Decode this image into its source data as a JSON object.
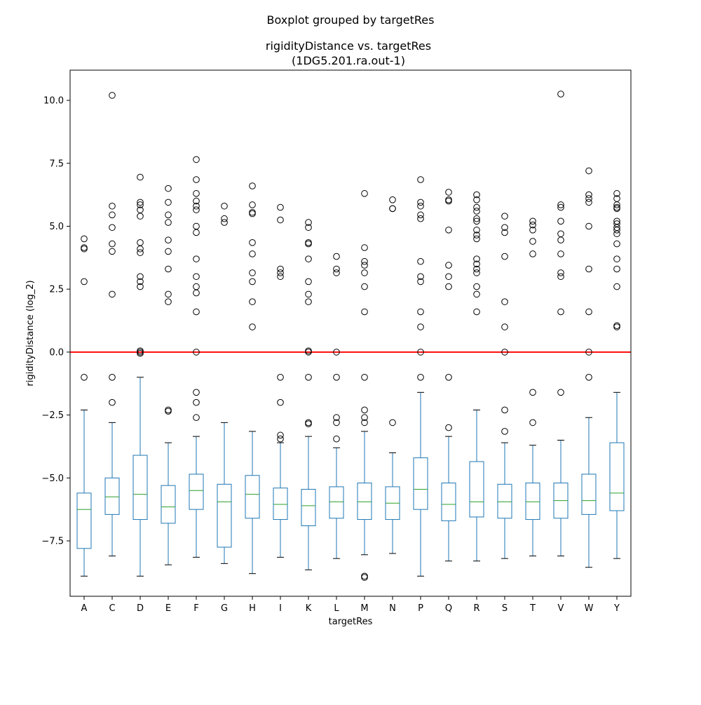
{
  "chart_data": {
    "type": "box",
    "suptitle": "Boxplot grouped by targetRes",
    "title_line1": "rigidityDistance vs. targetRes",
    "title_line2": "(1DG5.201.ra.out-1)",
    "xlabel": "targetRes",
    "ylabel": "rigidityDistance (log_2)",
    "ylim": [
      -9.7,
      11.2
    ],
    "yticks": [
      {
        "value": -7.5,
        "label": "−7.5"
      },
      {
        "value": -5.0,
        "label": "−5.0"
      },
      {
        "value": -2.5,
        "label": "−2.5"
      },
      {
        "value": 0.0,
        "label": "0.0"
      },
      {
        "value": 2.5,
        "label": "2.5"
      },
      {
        "value": 5.0,
        "label": "5.0"
      },
      {
        "value": 7.5,
        "label": "7.5"
      },
      {
        "value": 10.0,
        "label": "10.0"
      }
    ],
    "reference_line": {
      "value": 0.0,
      "color": "#ff0000"
    },
    "box_color": "#1f77b4",
    "median_color": "#2ca02c",
    "grid": false,
    "categories": [
      "A",
      "C",
      "D",
      "E",
      "F",
      "G",
      "H",
      "I",
      "K",
      "L",
      "M",
      "N",
      "P",
      "Q",
      "R",
      "S",
      "T",
      "V",
      "W",
      "Y"
    ],
    "boxes": [
      {
        "whislo": -8.9,
        "q1": -7.8,
        "med": -6.25,
        "q3": -5.6,
        "whishi": -2.3,
        "fliers": [
          4.5,
          4.15,
          4.1,
          2.8,
          -1.0
        ]
      },
      {
        "whislo": -8.1,
        "q1": -6.45,
        "med": -5.75,
        "q3": -5.0,
        "whishi": -2.8,
        "fliers": [
          10.2,
          5.8,
          5.45,
          4.95,
          4.3,
          4.0,
          2.3,
          -1.0,
          -2.0
        ]
      },
      {
        "whislo": -8.9,
        "q1": -6.65,
        "med": -5.65,
        "q3": -4.1,
        "whishi": -1.0,
        "fliers": [
          6.95,
          5.95,
          5.85,
          5.65,
          5.4,
          4.35,
          4.1,
          3.95,
          3.0,
          2.8,
          2.6,
          0.05,
          0.0,
          -0.05
        ]
      },
      {
        "whislo": -8.45,
        "q1": -6.8,
        "med": -6.15,
        "q3": -5.3,
        "whishi": -3.6,
        "fliers": [
          6.5,
          5.95,
          5.45,
          5.15,
          4.45,
          4.0,
          3.3,
          2.3,
          2.0,
          -2.3,
          -2.35
        ]
      },
      {
        "whislo": -8.15,
        "q1": -6.25,
        "med": -5.5,
        "q3": -4.85,
        "whishi": -3.35,
        "fliers": [
          7.65,
          6.85,
          6.3,
          6.0,
          5.8,
          5.65,
          5.0,
          4.75,
          3.7,
          3.0,
          2.6,
          2.35,
          1.6,
          0.0,
          -1.6,
          -2.0,
          -2.6
        ]
      },
      {
        "whislo": -8.4,
        "q1": -7.75,
        "med": -5.95,
        "q3": -5.25,
        "whishi": -2.8,
        "fliers": [
          5.8,
          5.3,
          5.15
        ]
      },
      {
        "whislo": -8.8,
        "q1": -6.6,
        "med": -5.65,
        "q3": -4.9,
        "whishi": -3.15,
        "fliers": [
          6.6,
          5.85,
          5.55,
          5.5,
          4.35,
          3.9,
          3.15,
          2.8,
          2.0,
          1.0
        ]
      },
      {
        "whislo": -8.15,
        "q1": -6.65,
        "med": -6.05,
        "q3": -5.4,
        "whishi": -3.6,
        "fliers": [
          5.75,
          5.25,
          3.3,
          3.15,
          3.0,
          -1.0,
          -2.0,
          -3.3,
          -3.45
        ]
      },
      {
        "whislo": -8.65,
        "q1": -6.9,
        "med": -6.1,
        "q3": -5.45,
        "whishi": -3.35,
        "fliers": [
          5.15,
          4.95,
          4.35,
          4.3,
          3.7,
          2.8,
          2.3,
          2.0,
          0.05,
          0.0,
          -1.0,
          -2.8,
          -2.85
        ]
      },
      {
        "whislo": -8.2,
        "q1": -6.6,
        "med": -5.95,
        "q3": -5.35,
        "whishi": -3.8,
        "fliers": [
          3.8,
          3.3,
          3.15,
          0.0,
          -1.0,
          -2.6,
          -2.8,
          -3.45
        ]
      },
      {
        "whislo": -8.05,
        "q1": -6.65,
        "med": -5.95,
        "q3": -5.2,
        "whishi": -3.15,
        "fliers": [
          6.3,
          4.15,
          3.6,
          3.45,
          3.15,
          2.6,
          1.6,
          -1.0,
          -2.3,
          -2.6,
          -2.8,
          -8.9,
          -8.95
        ]
      },
      {
        "whislo": -8.0,
        "q1": -6.65,
        "med": -6.0,
        "q3": -5.35,
        "whishi": -4.0,
        "fliers": [
          6.05,
          5.7,
          5.7,
          -2.8
        ]
      },
      {
        "whislo": -8.9,
        "q1": -6.25,
        "med": -5.45,
        "q3": -4.2,
        "whishi": -1.6,
        "fliers": [
          6.85,
          5.95,
          5.8,
          5.45,
          5.3,
          3.6,
          3.0,
          2.8,
          1.6,
          1.0,
          0.0,
          -1.0
        ]
      },
      {
        "whislo": -8.3,
        "q1": -6.7,
        "med": -6.05,
        "q3": -5.2,
        "whishi": -3.35,
        "fliers": [
          6.35,
          6.05,
          6.0,
          4.85,
          3.45,
          3.0,
          2.6,
          -1.0,
          -3.0
        ]
      },
      {
        "whislo": -8.3,
        "q1": -6.55,
        "med": -5.95,
        "q3": -4.35,
        "whishi": -2.3,
        "fliers": [
          6.25,
          6.05,
          5.75,
          5.6,
          5.3,
          5.2,
          4.85,
          4.65,
          4.5,
          3.7,
          3.5,
          3.3,
          3.15,
          2.6,
          2.3,
          1.6
        ]
      },
      {
        "whislo": -8.2,
        "q1": -6.6,
        "med": -5.95,
        "q3": -5.25,
        "whishi": -3.6,
        "fliers": [
          5.4,
          4.95,
          4.75,
          3.8,
          2.0,
          1.0,
          0.0,
          -2.3,
          -3.15
        ]
      },
      {
        "whislo": -8.1,
        "q1": -6.65,
        "med": -5.95,
        "q3": -5.2,
        "whishi": -3.7,
        "fliers": [
          5.2,
          5.05,
          4.85,
          4.4,
          3.9,
          -1.6,
          -2.8
        ]
      },
      {
        "whislo": -8.1,
        "q1": -6.6,
        "med": -5.9,
        "q3": -5.2,
        "whishi": -3.5,
        "fliers": [
          10.25,
          5.85,
          5.75,
          5.2,
          4.7,
          4.45,
          3.9,
          3.15,
          3.0,
          1.6,
          -1.6
        ]
      },
      {
        "whislo": -8.55,
        "q1": -6.45,
        "med": -5.9,
        "q3": -4.85,
        "whishi": -2.6,
        "fliers": [
          7.2,
          6.25,
          6.1,
          5.95,
          5.0,
          3.3,
          1.6,
          0.0,
          -1.0
        ]
      },
      {
        "whislo": -8.2,
        "q1": -6.3,
        "med": -5.6,
        "q3": -3.6,
        "whishi": -1.6,
        "fliers": [
          6.3,
          6.1,
          5.85,
          5.75,
          5.7,
          5.2,
          5.1,
          4.95,
          4.85,
          4.7,
          4.3,
          3.7,
          3.3,
          2.6,
          1.0,
          1.05
        ]
      }
    ]
  }
}
